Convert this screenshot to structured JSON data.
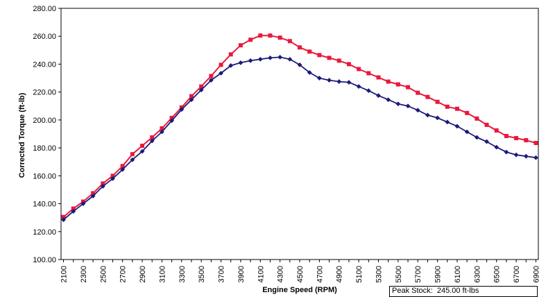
{
  "chart_data": {
    "type": "line",
    "xlabel": "Engine Speed (RPM)",
    "ylabel": "Corrected Torque (ft-lb)",
    "ylim": [
      100,
      280
    ],
    "y_ticks": [
      "100.00",
      "120.00",
      "140.00",
      "160.00",
      "180.00",
      "200.00",
      "220.00",
      "240.00",
      "260.00",
      "280.00"
    ],
    "x_tick_labels": [
      "2100",
      "2300",
      "2500",
      "2700",
      "2900",
      "3100",
      "3300",
      "3500",
      "3700",
      "3900",
      "4100",
      "4300",
      "4500",
      "4700",
      "4900",
      "5100",
      "5300",
      "5500",
      "5700",
      "5900",
      "6100",
      "6300",
      "6500",
      "6700",
      "6900"
    ],
    "x": [
      2100,
      2200,
      2300,
      2400,
      2500,
      2600,
      2700,
      2800,
      2900,
      3000,
      3100,
      3200,
      3300,
      3400,
      3500,
      3600,
      3700,
      3800,
      3900,
      4000,
      4100,
      4200,
      4300,
      4400,
      4500,
      4600,
      4700,
      4800,
      4900,
      5000,
      5100,
      5200,
      5300,
      5400,
      5500,
      5600,
      5700,
      5800,
      5900,
      6000,
      6100,
      6200,
      6300,
      6400,
      6500,
      6600,
      6700,
      6800,
      6900
    ],
    "grid": false,
    "series": [
      {
        "color": "#e8193c",
        "marker": "square",
        "values": [
          130.5,
          136.5,
          141.5,
          147.5,
          154.5,
          160,
          167,
          175.5,
          181.5,
          187.5,
          194,
          201.5,
          209,
          217,
          224,
          231.5,
          239.5,
          247,
          253.5,
          257.5,
          260.5,
          260.5,
          259,
          256.5,
          252,
          249,
          246.5,
          244.5,
          242.5,
          240,
          236.5,
          233.5,
          230.5,
          227.5,
          225.5,
          223.5,
          219.5,
          216.5,
          213,
          209.5,
          208,
          205,
          201,
          196.5,
          192.5,
          188.5,
          187,
          185.5,
          183.5
        ]
      },
      {
        "color": "#1b1b7a",
        "marker": "diamond",
        "values": [
          128.5,
          134.5,
          140,
          145.5,
          152.5,
          158,
          164.5,
          171.5,
          177.5,
          185,
          191.5,
          199.5,
          207.5,
          214.5,
          221.5,
          228.5,
          233.5,
          239,
          241,
          242.5,
          243.5,
          244.5,
          245,
          243.5,
          239.5,
          234,
          230,
          228.5,
          227.5,
          227,
          224,
          221,
          217.5,
          214.5,
          211.5,
          210,
          207,
          203.5,
          201.5,
          198.5,
          195.5,
          191.5,
          187.5,
          184.5,
          180.5,
          177,
          175,
          174,
          173
        ]
      }
    ]
  },
  "peak_box": {
    "label": "Peak Stock:",
    "value": "245.00 ft-lbs"
  }
}
